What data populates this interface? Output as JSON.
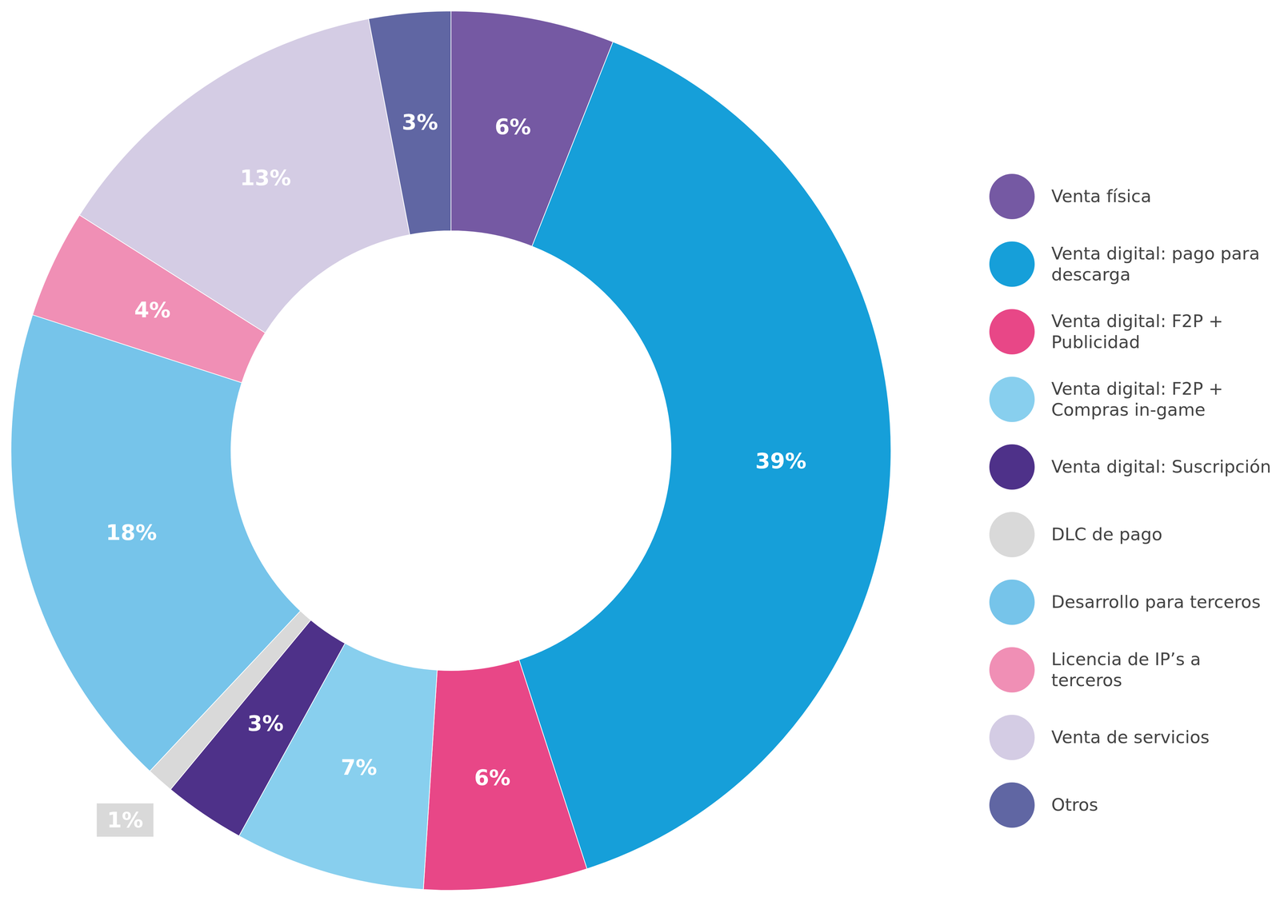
{
  "chart_data": {
    "type": "pie",
    "categories": [
      "Venta física",
      "Venta digital: pago para descarga",
      "Venta digital: F2P + Publicidad",
      "Venta digital: F2P + Compras in-game",
      "Venta digital: Suscripción",
      "DLC de pago",
      "Desarrollo para terceros",
      "Licencia de IP’s a terceros",
      "Venta de servicios",
      "Otros"
    ],
    "values": [
      6,
      39,
      6,
      7,
      3,
      1,
      18,
      4,
      13,
      3
    ],
    "value_labels": [
      "6%",
      "39%",
      "6%",
      "7%",
      "3%",
      "1%",
      "18%",
      "4%",
      "13%",
      "3%"
    ],
    "colors": [
      "#7559a3",
      "#169fd9",
      "#e84787",
      "#88cfee",
      "#4e3189",
      "#d9d9d9",
      "#76c4ea",
      "#f08fb5",
      "#d4cce4",
      "#6066a3"
    ],
    "data_labels": true,
    "legend": "right"
  }
}
